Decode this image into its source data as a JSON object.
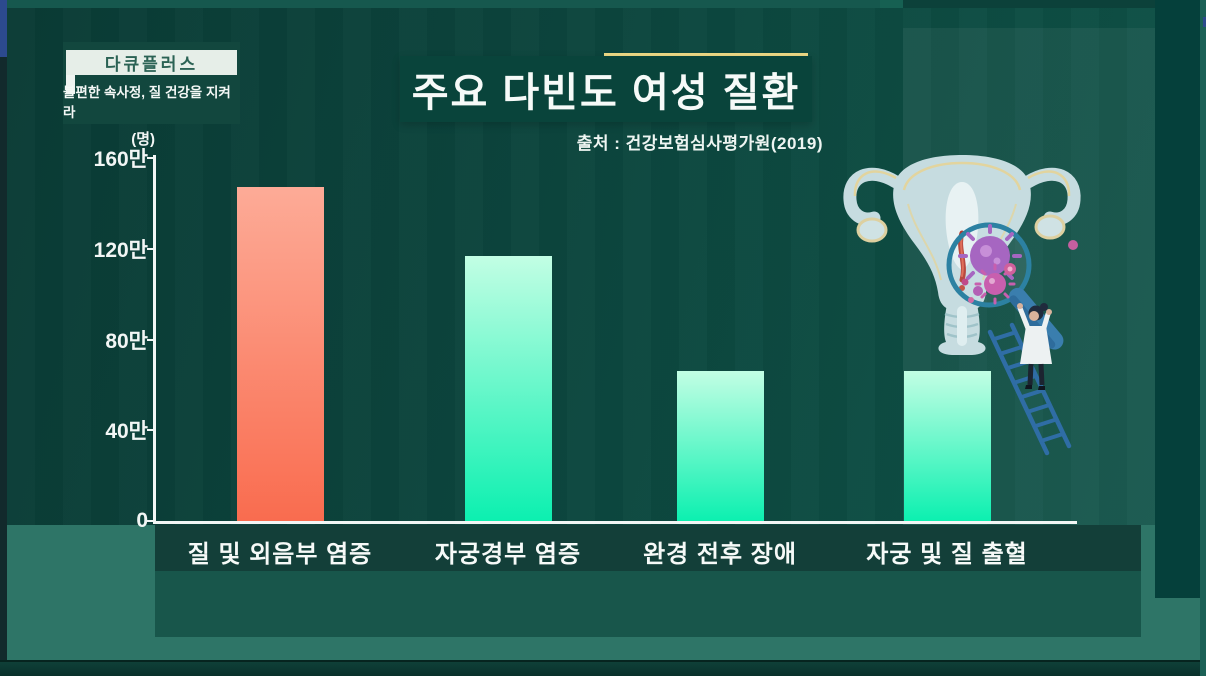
{
  "program": {
    "badge_title": "다큐플러스",
    "badge_subtitle": "불편한 속사정, 질 건강을 지켜라"
  },
  "header": {
    "title": "주요 다빈도 여성 질환",
    "source": "출처 : 건강보험심사평가원(2019)",
    "accent_line_color": "#eed985"
  },
  "illustration": {
    "alt": "자궁 일러스트 — 돋보기 속 세균, 사다리 위 의사"
  },
  "chart_data": {
    "type": "bar",
    "title": "주요 다빈도 여성 질환",
    "source": "출처 : 건강보험심사평가원(2019)",
    "unit": "(명)",
    "categories": [
      "질 및 외음부 염증",
      "자궁경부 염증",
      "완경 전후 장애",
      "자궁 및 질 출혈"
    ],
    "values_man": [
      147,
      117,
      66,
      66
    ],
    "values_approx_persons": [
      1470000,
      1170000,
      660000,
      660000
    ],
    "values_estimated_from_pixels": true,
    "ylim_man": [
      0,
      160
    ],
    "yticks": [
      {
        "value": 0,
        "label": "0"
      },
      {
        "value": 40,
        "label": "40만"
      },
      {
        "value": 80,
        "label": "80만"
      },
      {
        "value": 120,
        "label": "120만"
      },
      {
        "value": 160,
        "label": "160만"
      }
    ],
    "grid": false,
    "legend": false,
    "bar_colors": {
      "highlight_top": "#fdab97",
      "highlight_bottom": "#f96c4f",
      "default_top": "#c2fee4",
      "default_bottom": "#0cf0b0"
    },
    "highlighted_category_index": 0
  }
}
